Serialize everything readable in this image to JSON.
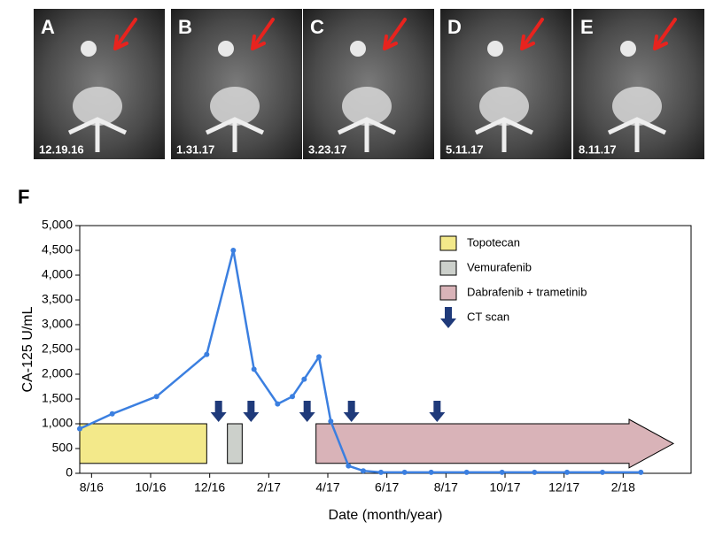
{
  "images": [
    {
      "letter": "A",
      "date": "12.19.16"
    },
    {
      "letter": "B",
      "date": "1.31.17"
    },
    {
      "letter": "C",
      "date": "3.23.17"
    },
    {
      "letter": "D",
      "date": "5.11.17"
    },
    {
      "letter": "E",
      "date": "8.11.17"
    }
  ],
  "panel_label": "F",
  "chart_data": {
    "type": "line",
    "ylabel": "CA-125 U/mL",
    "xlabel": "Date (month/year)",
    "x": [
      -0.4,
      0.7,
      2.2,
      3.9,
      4.8,
      5.5,
      6.3,
      6.8,
      7.2,
      7.7,
      8.1,
      8.7,
      9.2,
      9.8,
      10.6,
      11.5,
      12.7,
      13.9,
      15.0,
      16.1,
      17.3,
      18.6
    ],
    "series": [
      {
        "color": "#3b7fe0",
        "values": [
          900,
          1200,
          1550,
          2400,
          4500,
          2100,
          1400,
          1550,
          1900,
          2350,
          1050,
          150,
          50,
          20,
          20,
          20,
          20,
          20,
          20,
          20,
          20,
          20
        ]
      }
    ],
    "xlim": [
      -0.4,
      20.3
    ],
    "xticks": [
      {
        "value": 0,
        "label": "8/16"
      },
      {
        "value": 2,
        "label": "10/16"
      },
      {
        "value": 4,
        "label": "12/16"
      },
      {
        "value": 6,
        "label": "2/17"
      },
      {
        "value": 8,
        "label": "4/17"
      },
      {
        "value": 10,
        "label": "6/17"
      },
      {
        "value": 12,
        "label": "8/17"
      },
      {
        "value": 14,
        "label": "10/17"
      },
      {
        "value": 16,
        "label": "12/17"
      },
      {
        "value": 18,
        "label": "2/18"
      }
    ],
    "ylim": [
      0,
      5000
    ],
    "yticks": [
      0,
      500,
      {
        "value": 1000,
        "label": "1,000"
      },
      {
        "value": 1500,
        "label": "1,500"
      },
      {
        "value": 2000,
        "label": "2,000"
      },
      {
        "value": 2500,
        "label": "2,500"
      },
      {
        "value": 3000,
        "label": "3,000"
      },
      {
        "value": 3500,
        "label": "3,500"
      },
      {
        "value": 4000,
        "label": "4,000"
      },
      {
        "value": 4500,
        "label": "4,500"
      },
      {
        "value": 5000,
        "label": "5,000"
      }
    ],
    "treatments": [
      {
        "name": "Topotecan",
        "color": "#f3e98a",
        "start": -0.4,
        "end": 3.9,
        "low": 200,
        "high": 1000
      },
      {
        "name": "Vemurafenib",
        "color": "#ccd0cb",
        "start": 4.6,
        "end": 5.1,
        "low": 200,
        "high": 1000
      },
      {
        "name": "Dabrafenib + trametinib",
        "color": "#d9b3b8",
        "start": 7.6,
        "end": 19.7,
        "low": 200,
        "high": 1000
      }
    ],
    "ct_scan": {
      "name": "CT scan",
      "color": "#1f3a7a",
      "x": [
        4.3,
        5.4,
        7.3,
        8.8,
        11.7
      ]
    }
  }
}
